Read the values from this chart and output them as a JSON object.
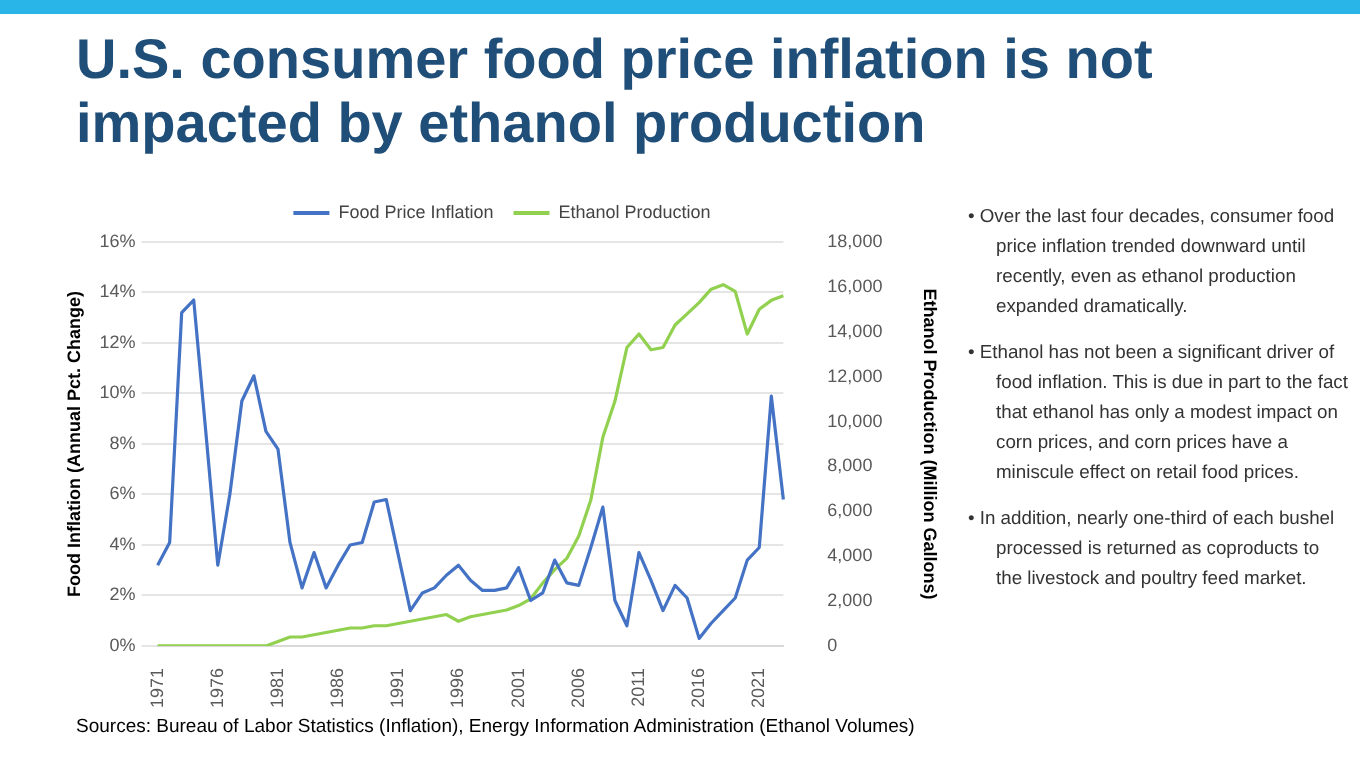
{
  "chart_data": {
    "type": "line",
    "title": "U.S. consumer food price inflation is not impacted by ethanol production",
    "xlabel": null,
    "ylabel": "Food Inflation (Annual Pct. Change)",
    "y2label": "Ethanol Production (Million Gallons)",
    "categories": [
      "1971",
      null,
      null,
      null,
      null,
      "1976",
      null,
      null,
      null,
      null,
      "1981",
      null,
      null,
      null,
      null,
      "1986",
      null,
      null,
      null,
      null,
      "1991",
      null,
      null,
      null,
      null,
      "1996",
      null,
      null,
      null,
      null,
      "2001",
      null,
      null,
      null,
      null,
      "2006",
      null,
      null,
      null,
      null,
      "2011",
      null,
      null,
      null,
      null,
      "2016",
      null,
      null,
      null,
      null,
      "2021",
      null,
      null
    ],
    "series": [
      {
        "name": "Food Price Inflation",
        "color": "#4472c4",
        "values": [
          3.2,
          4.1,
          13.2,
          13.7,
          8.5,
          3.2,
          6.0,
          9.7,
          10.7,
          8.5,
          7.8,
          4.1,
          2.3,
          3.7,
          2.3,
          3.2,
          4.0,
          4.1,
          5.7,
          5.8,
          3.6,
          1.4,
          2.1,
          2.3,
          2.8,
          3.2,
          2.6,
          2.2,
          2.2,
          2.3,
          3.1,
          1.8,
          2.1,
          3.4,
          2.5,
          2.4,
          3.9,
          5.5,
          1.8,
          0.8,
          3.7,
          2.6,
          1.4,
          2.4,
          1.9,
          0.3,
          0.9,
          1.4,
          1.9,
          3.4,
          3.9,
          9.9,
          5.8
        ]
      },
      {
        "name": "Ethanol Production",
        "color": "#92d050",
        "axis": "y2",
        "values": [
          0,
          0,
          0,
          0,
          0,
          0,
          0,
          0,
          0,
          0,
          200,
          400,
          400,
          500,
          600,
          700,
          800,
          800,
          900,
          900,
          1000,
          1100,
          1200,
          1300,
          1400,
          1100,
          1300,
          1400,
          1500,
          1600,
          1800,
          2100,
          2800,
          3400,
          3900,
          4900,
          6500,
          9300,
          10900,
          13300,
          13900,
          13200,
          13300,
          14300,
          14800,
          15300,
          15900,
          16100,
          15800,
          13900,
          15000,
          15400,
          15600
        ]
      }
    ],
    "ylim": [
      0,
      16
    ],
    "yticks": [
      {
        "value": 0,
        "label": "0%"
      },
      {
        "value": 2,
        "label": "2%"
      },
      {
        "value": 4,
        "label": "4%"
      },
      {
        "value": 6,
        "label": "6%"
      },
      {
        "value": 8,
        "label": "8%"
      },
      {
        "value": 10,
        "label": "10%"
      },
      {
        "value": 12,
        "label": "12%"
      },
      {
        "value": 14,
        "label": "14%"
      },
      {
        "value": 16,
        "label": "16%"
      }
    ],
    "y2lim": [
      0,
      18000
    ],
    "y2ticks": [
      0,
      {
        "value": 2000,
        "label": "2,000"
      },
      {
        "value": 4000,
        "label": "4,000"
      },
      {
        "value": 6000,
        "label": "6,000"
      },
      {
        "value": 8000,
        "label": "8,000"
      },
      {
        "value": 10000,
        "label": "10,000"
      },
      {
        "value": 12000,
        "label": "12,000"
      },
      {
        "value": 14000,
        "label": "14,000"
      },
      {
        "value": 16000,
        "label": "16,000"
      },
      {
        "value": 18000,
        "label": "18,000"
      }
    ],
    "grid": "y",
    "legend": "top",
    "marker": "none",
    "line_style": "solid",
    "annotations": [
      "• Over the last four decades, consumer food price inflation trended downward until recently, even as ethanol production expanded dramatically.",
      "• Ethanol has not been a significant driver of food inflation. This is due in part to the fact that ethanol has only a modest impact on corn prices, and corn prices have a miniscule effect on retail food prices.",
      "• In addition, nearly one-third of each bushel processed is returned as coproducts to the livestock and poultry feed market.",
      "Sources: Bureau of Labor Statistics (Inflation), Energy Information Administration (Ethanol Volumes)"
    ]
  }
}
